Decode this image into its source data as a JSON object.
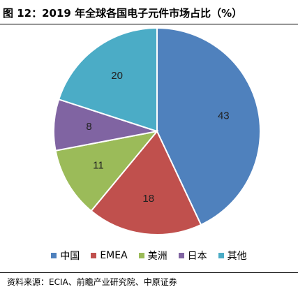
{
  "title": "图 12：2019 年全球各国电子元件市场占比（%）",
  "source": "资料来源：ECIA、前瞻产业研究院、中原证券",
  "chart_data": {
    "type": "pie",
    "title": "图 12：2019 年全球各国电子元件市场占比（%）",
    "categories": [
      "中国",
      "EMEA",
      "美洲",
      "日本",
      "其他"
    ],
    "values": [
      43,
      18,
      11,
      8,
      20
    ],
    "colors": [
      "#4F81BD",
      "#C0504D",
      "#9BBB59",
      "#8064A2",
      "#4BACC6"
    ],
    "legend_position": "bottom"
  }
}
